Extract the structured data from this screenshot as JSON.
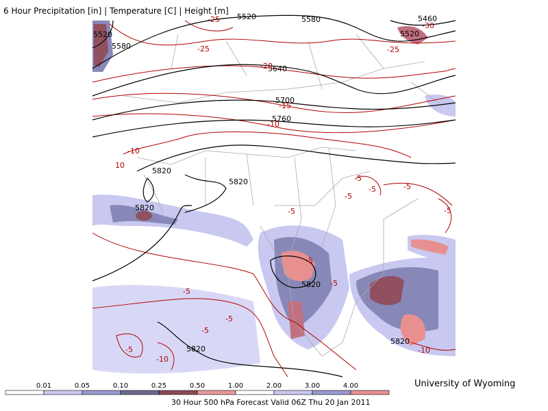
{
  "title": "6 Hour Precipitation [in] | Temperature [C] | Height [m]",
  "height_labels": [
    "5520",
    "5580",
    "5460",
    "5520",
    "5580",
    "5520",
    "5640",
    "5700",
    "5760",
    "5820",
    "5820",
    "5820",
    "5820",
    "5820",
    "5820"
  ],
  "temperature_labels": [
    "-25",
    "-25",
    "-30",
    "-25",
    "-20",
    "-15",
    "-10",
    "-10",
    "10",
    "-5",
    "-5",
    "-5",
    "-5",
    "-5",
    "-5",
    "-5",
    "-5",
    "-5",
    "-5",
    "-5",
    "-5",
    "-10",
    "-10"
  ],
  "colorbar": {
    "labels": [
      "0.01",
      "0.05",
      "0.10",
      "0.25",
      "0.50",
      "1.00",
      "2.00",
      "3.00",
      "4.00"
    ],
    "colors": [
      "#ffffff",
      "#c8c8f0",
      "#9a9ad2",
      "#6a6a90",
      "#8a4a58",
      "#e89a9a",
      "#ffffff",
      "#c8c8f0",
      "#9a9ad2",
      "#e89090"
    ]
  },
  "footer": "30 Hour 500 hPa Forecast Valid 06Z Thu 20 Jan 2011",
  "attribution": "University of Wyoming"
}
